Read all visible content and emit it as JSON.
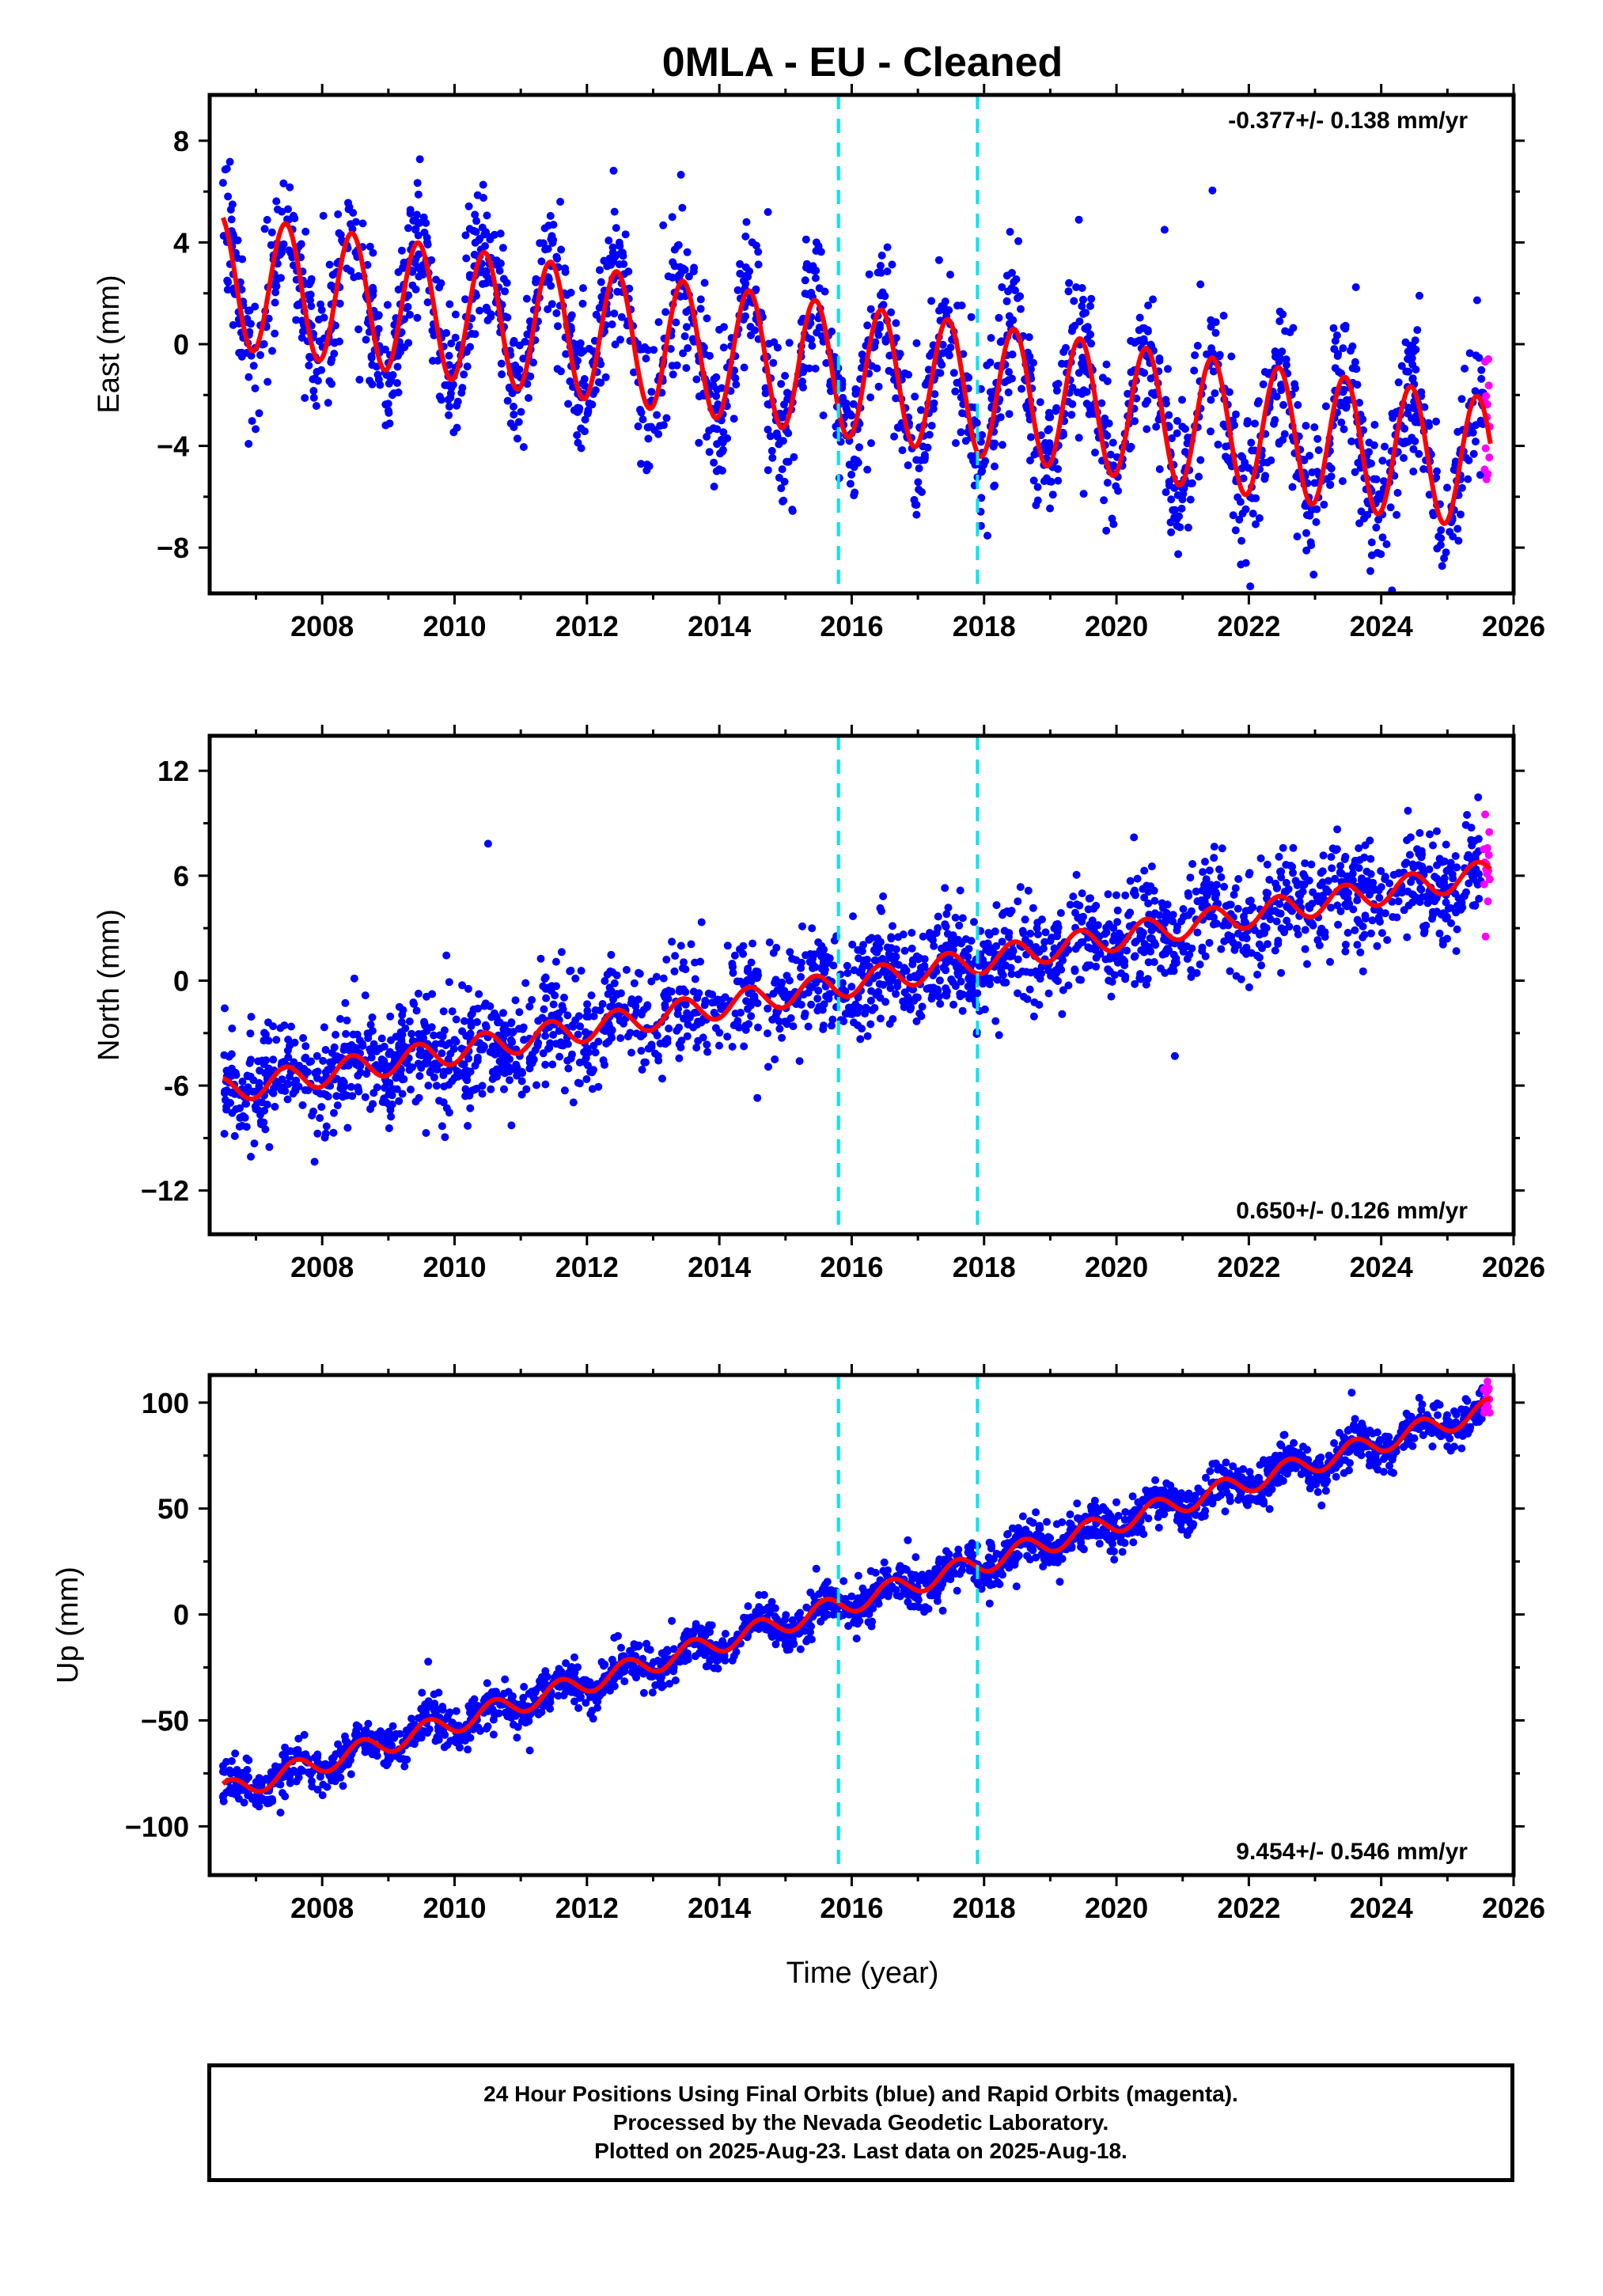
{
  "title": "0MLA  - EU - Cleaned",
  "xlabel": "Time (year)",
  "colors": {
    "final": "#0000ff",
    "rapid": "#ff00ff",
    "model": "#ff0000",
    "event": "#00e5ee",
    "axes": "#000000"
  },
  "caption": {
    "line1": "24 Hour Positions Using Final Orbits (blue) and Rapid Orbits (magenta).",
    "line2": "Processed by the Nevada Geodetic Laboratory.",
    "line3": "Plotted on 2025-Aug-23. Last data on 2025-Aug-18."
  },
  "chart_data": [
    {
      "type": "scatter",
      "component": "East",
      "ylabel": "East (mm)",
      "ylim": [
        -9.8,
        9.8
      ],
      "yticks": [
        -8,
        -4,
        0,
        4,
        8
      ],
      "ytick_labels": [
        "−8",
        "−4",
        "0",
        "4",
        "8"
      ],
      "xlim": [
        2006.3,
        2026.0
      ],
      "xticks": [
        2008,
        2010,
        2012,
        2014,
        2016,
        2018,
        2020,
        2022,
        2024,
        2026
      ],
      "xtick_labels": [
        "2008",
        "2010",
        "2012",
        "2014",
        "2016",
        "2018",
        "2020",
        "2022",
        "2024",
        "2026"
      ],
      "rate": "-0.377+/- 0.138 mm/yr",
      "rate_position": "top-right",
      "events": [
        2015.8,
        2017.9
      ],
      "model": {
        "start_year": 2006.5,
        "end_year": 2025.65,
        "offset": 2.5,
        "slope": -0.377,
        "amplitude": 2.6,
        "peak_phase": 0.45
      },
      "final_orbits": {
        "start_year": 2006.5,
        "end_year": 2025.55,
        "scatter_mm": 1.4
      },
      "rapid_orbits": {
        "start_year": 2025.55,
        "end_year": 2025.64,
        "scatter_mm": 1.8
      }
    },
    {
      "type": "scatter",
      "component": "North",
      "ylabel": "North (mm)",
      "ylim": [
        -14.5,
        14.0
      ],
      "yticks": [
        -12,
        -6,
        0,
        6,
        12
      ],
      "ytick_labels": [
        "−12",
        "-6",
        "0",
        "6",
        "12"
      ],
      "xlim": [
        2006.3,
        2026.0
      ],
      "xticks": [
        2008,
        2010,
        2012,
        2014,
        2016,
        2018,
        2020,
        2022,
        2024,
        2026
      ],
      "xtick_labels": [
        "2008",
        "2010",
        "2012",
        "2014",
        "2016",
        "2018",
        "2020",
        "2022",
        "2024",
        "2026"
      ],
      "rate": "0.650+/- 0.126 mm/yr",
      "rate_position": "bottom-right",
      "events": [
        2015.8,
        2017.9
      ],
      "model": {
        "start_year": 2006.5,
        "end_year": 2025.65,
        "offset": -6.3,
        "slope": 0.65,
        "amplitude": 0.75,
        "peak_phase": 0.45
      },
      "final_orbits": {
        "start_year": 2006.5,
        "end_year": 2025.55,
        "scatter_mm": 1.5
      },
      "rapid_orbits": {
        "start_year": 2025.55,
        "end_year": 2025.64,
        "scatter_mm": 1.5
      }
    },
    {
      "type": "scatter",
      "component": "Up",
      "ylabel": "Up (mm)",
      "ylim": [
        -123,
        113
      ],
      "yticks": [
        -100,
        -50,
        0,
        50,
        100
      ],
      "ytick_labels": [
        "−100",
        "−50",
        "0",
        "50",
        "100"
      ],
      "xlim": [
        2006.3,
        2026.0
      ],
      "xticks": [
        2008,
        2010,
        2012,
        2014,
        2016,
        2018,
        2020,
        2022,
        2024,
        2026
      ],
      "xtick_labels": [
        "2008",
        "2010",
        "2012",
        "2014",
        "2016",
        "2018",
        "2020",
        "2022",
        "2024",
        "2026"
      ],
      "rate": "9.454+/- 0.546 mm/yr",
      "rate_position": "bottom-right",
      "events": [
        2015.8,
        2017.9
      ],
      "model": {
        "start_year": 2006.5,
        "end_year": 2025.65,
        "offset": -84.0,
        "slope": 9.454,
        "amplitude": 5.0,
        "peak_phase": 0.6
      },
      "final_orbits": {
        "start_year": 2006.5,
        "end_year": 2025.55,
        "scatter_mm": 5.0
      },
      "rapid_orbits": {
        "start_year": 2025.55,
        "end_year": 2025.64,
        "scatter_mm": 4.0
      }
    }
  ]
}
